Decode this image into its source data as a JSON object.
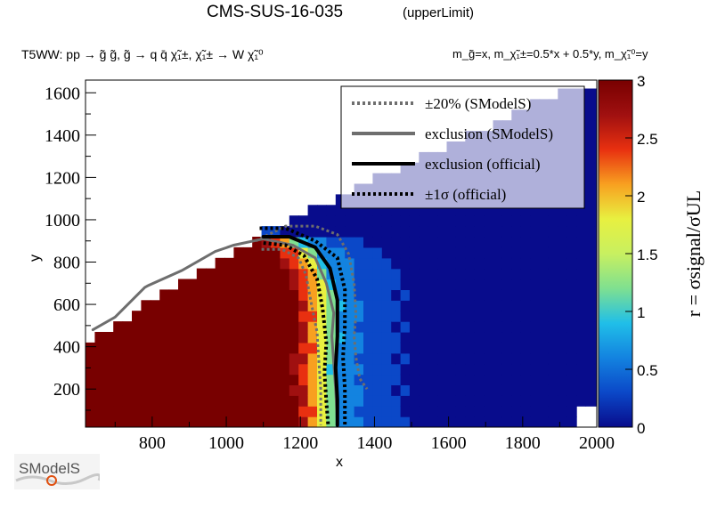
{
  "header": {
    "title": "CMS-SUS-16-035",
    "subtitle": "(upperLimit)",
    "process": "T5WW: pp → g̃ g̃, g̃ → q q̄ χ̃₁±, χ̃₁± → W χ̃₁⁰",
    "mass_relation": "m_g̃=x, m_χ̃₁±=0.5*x + 0.5*y, m_χ̃₁⁰=y"
  },
  "logo": {
    "text": "SModelS"
  },
  "chart_data": {
    "type": "heatmap",
    "title": "CMS-SUS-16-035",
    "xlabel": "x",
    "ylabel": "y",
    "zlabel": "r = σsignal/σUL",
    "xlim": [
      620,
      2000
    ],
    "ylim": [
      20,
      1660
    ],
    "zlim": [
      0,
      3
    ],
    "xticks": [
      800,
      1000,
      1200,
      1400,
      1600,
      1800,
      2000
    ],
    "yticks": [
      200,
      400,
      600,
      800,
      1000,
      1200,
      1400,
      1600
    ],
    "zticks": [
      0,
      0.5,
      1,
      1.5,
      2,
      2.5,
      3
    ],
    "colormap": [
      "#080c8c",
      "#0b48c8",
      "#1383e0",
      "#20bfe8",
      "#7fe090",
      "#e8f040",
      "#f8a020",
      "#e83010",
      "#a01010",
      "#780000"
    ],
    "grid": {
      "x_step": 25,
      "y_step": 50
    },
    "region_note": "r rises steeply to saturation (>=3) below x≈1100 and falls to ~0.1 above x≈1600",
    "contours": [
      {
        "name": "±20% (SModelS)",
        "style": "dotted",
        "color": "#6e6e6e",
        "width": 3,
        "x": [
          1080,
          1160,
          1240,
          1300,
          1330,
          1345,
          1350,
          1345,
          1350,
          1360,
          1380
        ],
        "y": [
          900,
          970,
          970,
          930,
          840,
          700,
          550,
          450,
          350,
          250,
          200
        ]
      },
      {
        "name": "±20% (SModelS) lower",
        "style": "dotted",
        "color": "#6e6e6e",
        "width": 3,
        "x": [
          1095,
          1150,
          1195,
          1215,
          1230,
          1245,
          1250,
          1255,
          1255
        ],
        "y": [
          860,
          860,
          820,
          740,
          600,
          470,
          330,
          200,
          30
        ]
      },
      {
        "name": "exclusion (SModelS)",
        "style": "solid",
        "color": "#6e6e6e",
        "width": 3,
        "x": [
          640,
          700,
          780,
          790,
          880,
          970,
          1020,
          1100,
          1180,
          1240,
          1270,
          1290,
          1285,
          1290,
          1295,
          1300
        ],
        "y": [
          480,
          540,
          680,
          690,
          760,
          850,
          880,
          910,
          880,
          820,
          700,
          560,
          450,
          320,
          200,
          40
        ]
      },
      {
        "name": "exclusion (official)",
        "style": "solid",
        "color": "#000000",
        "width": 4,
        "x": [
          1100,
          1170,
          1240,
          1280,
          1300,
          1300,
          1295,
          1300,
          1300
        ],
        "y": [
          920,
          920,
          870,
          770,
          620,
          450,
          300,
          150,
          30
        ]
      },
      {
        "name": "±1σ (official) upper",
        "style": "dotted",
        "color": "#000000",
        "width": 4,
        "x": [
          1090,
          1160,
          1240,
          1300,
          1320,
          1320,
          1315,
          1320,
          1320
        ],
        "y": [
          960,
          960,
          900,
          820,
          670,
          500,
          350,
          200,
          30
        ]
      },
      {
        "name": "±1σ (official) lower",
        "style": "dotted",
        "color": "#000000",
        "width": 4,
        "x": [
          1100,
          1160,
          1210,
          1245,
          1260,
          1270,
          1265,
          1270,
          1275
        ],
        "y": [
          890,
          880,
          830,
          720,
          580,
          420,
          280,
          140,
          30
        ]
      }
    ],
    "legend": {
      "placement": "top-right",
      "entries": [
        {
          "label": "±20% (SModelS)",
          "style": "dotted",
          "color": "#6e6e6e"
        },
        {
          "label": "exclusion (SModelS)",
          "style": "solid",
          "color": "#6e6e6e"
        },
        {
          "label": "exclusion (official)",
          "style": "solid",
          "color": "#000000"
        },
        {
          "label": "±1σ (official)",
          "style": "dotted",
          "color": "#000000"
        }
      ]
    }
  }
}
